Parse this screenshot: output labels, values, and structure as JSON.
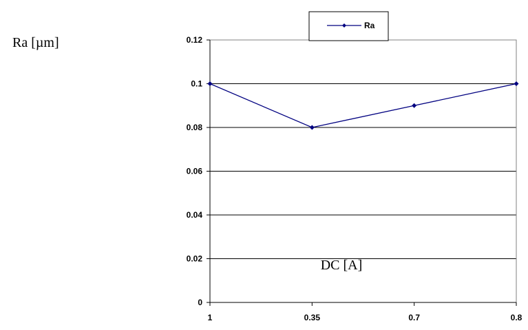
{
  "chart_data": {
    "type": "line",
    "categories": [
      "1",
      "0.35",
      "0.7",
      "0.8"
    ],
    "series": [
      {
        "name": "Ra",
        "values": [
          0.1,
          0.08,
          0.09,
          0.1
        ],
        "color": "#000080"
      }
    ],
    "ylabel": "Ra [µm]",
    "xlabel": "DC [A]",
    "ylim": [
      0,
      0.12
    ],
    "yticks": [
      "0",
      "0.02",
      "0.04",
      "0.06",
      "0.08",
      "0.1",
      "0.12"
    ],
    "grid": "horizontal",
    "legend_placement": "top-center",
    "marker": "diamond"
  }
}
